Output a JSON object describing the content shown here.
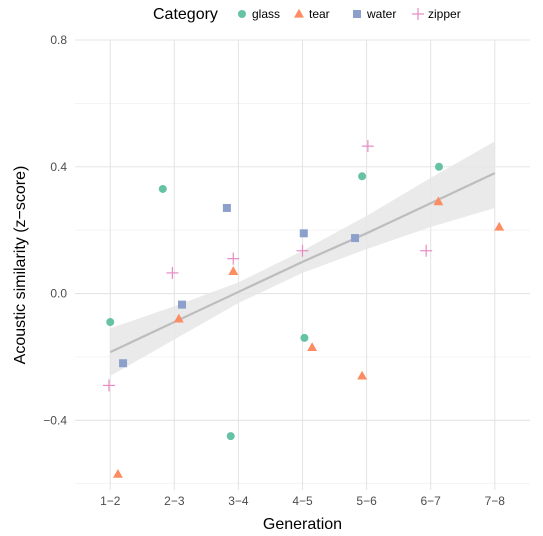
{
  "chart_data": {
    "type": "scatter",
    "title": "",
    "xlabel": "Generation",
    "ylabel": "Acoustic similarity (z−score)",
    "legend_title": "Category",
    "legend_position": "top",
    "grid": true,
    "categories": [
      "1−2",
      "2−3",
      "3−4",
      "4−5",
      "5−6",
      "6−7",
      "7−8"
    ],
    "ylim": [
      -0.62,
      0.8
    ],
    "yticks": [
      -0.4,
      0.0,
      0.4,
      0.8
    ],
    "ytick_labels": [
      "−0.4",
      "0.0",
      "0.4",
      "0.8"
    ],
    "series": [
      {
        "name": "glass",
        "shape": "circle",
        "color": "#66c2a5",
        "points": [
          {
            "x": 1.0,
            "y": -0.09
          },
          {
            "x": 1.82,
            "y": 0.33
          },
          {
            "x": 2.88,
            "y": -0.45
          },
          {
            "x": 4.03,
            "y": -0.14
          },
          {
            "x": 4.93,
            "y": 0.37
          },
          {
            "x": 6.13,
            "y": 0.4
          }
        ]
      },
      {
        "name": "tear",
        "shape": "triangle",
        "color": "#fc8d62",
        "points": [
          {
            "x": 1.12,
            "y": -0.57
          },
          {
            "x": 2.07,
            "y": -0.08
          },
          {
            "x": 2.92,
            "y": 0.07
          },
          {
            "x": 4.15,
            "y": -0.17
          },
          {
            "x": 4.93,
            "y": -0.26
          },
          {
            "x": 6.12,
            "y": 0.29
          },
          {
            "x": 7.07,
            "y": 0.21
          }
        ]
      },
      {
        "name": "water",
        "shape": "square",
        "color": "#8da0cb",
        "points": [
          {
            "x": 1.2,
            "y": -0.22
          },
          {
            "x": 2.12,
            "y": -0.035
          },
          {
            "x": 2.82,
            "y": 0.27
          },
          {
            "x": 4.02,
            "y": 0.19
          },
          {
            "x": 4.82,
            "y": 0.175
          }
        ]
      },
      {
        "name": "zipper",
        "shape": "plus",
        "color": "#e78ac3",
        "points": [
          {
            "x": 0.98,
            "y": -0.29
          },
          {
            "x": 1.97,
            "y": 0.065
          },
          {
            "x": 2.92,
            "y": 0.11
          },
          {
            "x": 4.0,
            "y": 0.135
          },
          {
            "x": 5.02,
            "y": 0.465
          },
          {
            "x": 5.93,
            "y": 0.135
          }
        ]
      }
    ],
    "trend": {
      "color": "#bdbdbd",
      "band_color": "#e6e6e6",
      "points": [
        {
          "x": 1.0,
          "y": -0.185,
          "lo": -0.26,
          "hi": -0.11
        },
        {
          "x": 2.0,
          "y": -0.09,
          "lo": -0.145,
          "hi": -0.04
        },
        {
          "x": 3.0,
          "y": 0.005,
          "lo": -0.03,
          "hi": 0.035
        },
        {
          "x": 4.0,
          "y": 0.1,
          "lo": 0.065,
          "hi": 0.135
        },
        {
          "x": 5.0,
          "y": 0.19,
          "lo": 0.14,
          "hi": 0.245
        },
        {
          "x": 6.0,
          "y": 0.285,
          "lo": 0.21,
          "hi": 0.365
        },
        {
          "x": 7.0,
          "y": 0.38,
          "lo": 0.27,
          "hi": 0.48
        }
      ]
    }
  }
}
